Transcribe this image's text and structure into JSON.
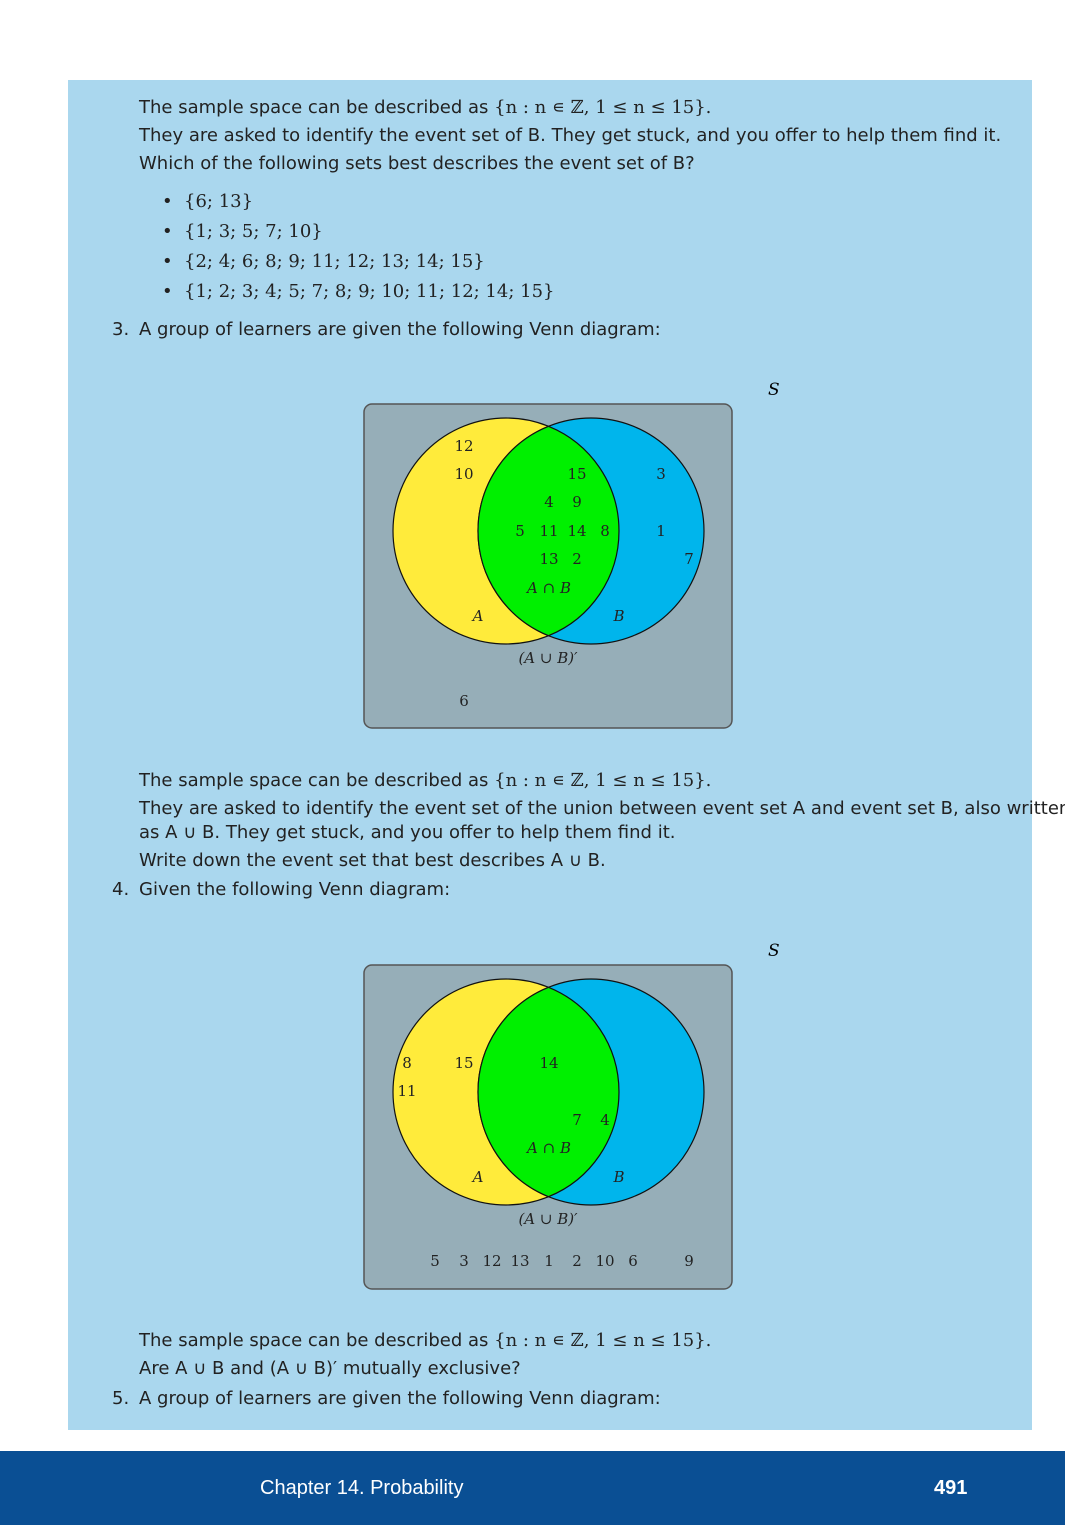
{
  "q2": {
    "sample_space_prefix": "The sample space can be described as ",
    "sample_space_set": "{n : n ∊ ℤ,  1 ≤ n ≤ 15}.",
    "line2": "They are asked to identify the event set of B. They get stuck, and you offer to help them find it.",
    "line3": "Which of the following sets best describes the event set of B?",
    "options": [
      "{6; 13}",
      "{1; 3; 5; 7; 10}",
      "{2; 4; 6; 8; 9; 11; 12; 13; 14; 15}",
      "{1; 2; 3; 4; 5; 7; 8; 9; 10; 11; 12; 14; 15}"
    ]
  },
  "q3": {
    "number": "3.",
    "text": "A group of learners are given the following Venn diagram:",
    "venn": {
      "s_label": "S",
      "a_label": "A",
      "b_label": "B",
      "intersection_label": "A ∩ B",
      "complement_label": "(A ∪ B)′",
      "a_only": [
        "12",
        "10"
      ],
      "both": [
        "15",
        "4",
        "9",
        "5",
        "11",
        "14",
        "8",
        "13",
        "2"
      ],
      "b_only": [
        "3",
        "1",
        "7"
      ],
      "outside": [
        "6"
      ]
    },
    "sample_space_prefix": "The sample space can be described as ",
    "sample_space_set": "{n : n ∊ ℤ,  1 ≤ n ≤ 15}.",
    "line2": "They are asked to identify the event set of the union between event set A and event set B, also written",
    "line3": "as A ∪ B. They get stuck, and you offer to help them find it.",
    "line4": "Write down the event set that best describes A ∪ B."
  },
  "q4": {
    "number": "4.",
    "text": "Given the following Venn diagram:",
    "venn": {
      "s_label": "S",
      "a_label": "A",
      "b_label": "B",
      "intersection_label": "A ∩ B",
      "complement_label": "(A ∪ B)′",
      "a_only": [
        "8",
        "15",
        "11"
      ],
      "both": [
        "14",
        "7",
        "4"
      ],
      "b_only": [],
      "outside": [
        "5",
        "3",
        "12",
        "13",
        "1",
        "2",
        "10",
        "6",
        "9"
      ]
    },
    "sample_space_prefix": "The sample space can be described as ",
    "sample_space_set": "{n : n ∊ ℤ,  1 ≤ n ≤ 15}.",
    "line2": "Are A ∪ B and (A ∪ B)′ mutually exclusive?"
  },
  "q5": {
    "number": "5.",
    "text": "A group of learners are given the following Venn diagram:"
  },
  "footer": {
    "chapter": "Chapter 14.   Probability",
    "page": "491"
  },
  "colors": {
    "panel": "#aad7ee",
    "set_a": "#ffeb3b",
    "set_b": "#00b5ec",
    "intersection": "#00f000",
    "universe": "#96aeb8",
    "footer": "#0a4f94"
  }
}
